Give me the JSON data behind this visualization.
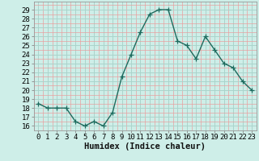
{
  "x": [
    0,
    1,
    2,
    3,
    4,
    5,
    6,
    7,
    8,
    9,
    10,
    11,
    12,
    13,
    14,
    15,
    16,
    17,
    18,
    19,
    20,
    21,
    22,
    23
  ],
  "y": [
    18.5,
    18.0,
    18.0,
    18.0,
    16.5,
    16.0,
    16.5,
    16.0,
    17.5,
    21.5,
    24.0,
    26.5,
    28.5,
    29.0,
    29.0,
    25.5,
    25.0,
    23.5,
    26.0,
    24.5,
    23.0,
    22.5,
    21.0,
    20.0
  ],
  "line_color": "#1d6b5e",
  "marker": "+",
  "markersize": 4,
  "bg_color": "#ceeee8",
  "grid_major_color": "#aad4cc",
  "grid_minor_color": "#e8a0a0",
  "xlabel": "Humidex (Indice chaleur)",
  "ylabel_ticks": [
    16,
    17,
    18,
    19,
    20,
    21,
    22,
    23,
    24,
    25,
    26,
    27,
    28,
    29
  ],
  "xlim": [
    -0.5,
    23.5
  ],
  "ylim": [
    15.5,
    29.9
  ],
  "xlabel_fontsize": 7.5,
  "tick_fontsize": 6.5,
  "linewidth": 1.0,
  "markeredgewidth": 0.9
}
